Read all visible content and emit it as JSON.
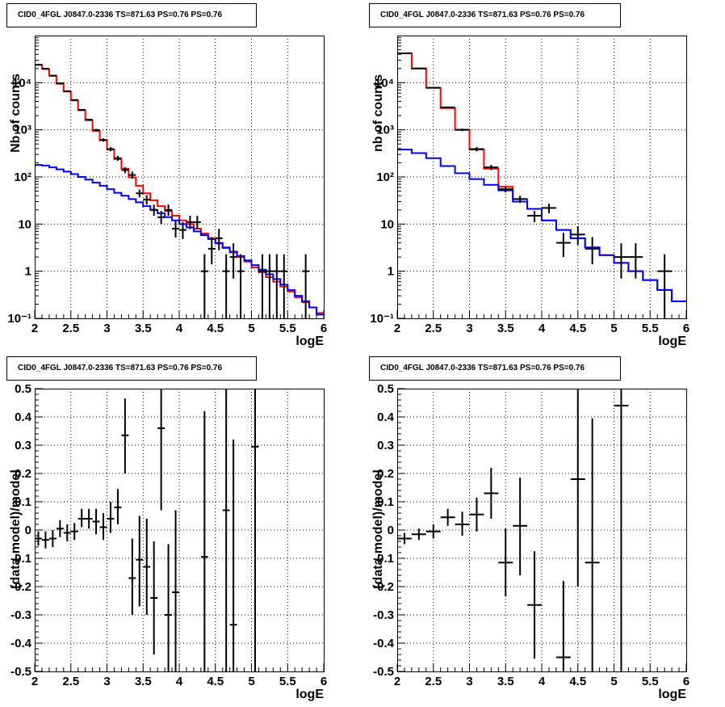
{
  "chart_data": [
    {
      "type": "line",
      "title": "CID0_4FGL J0847.0-2336 TS=871.63 PS=0.76 PS=0.76",
      "xlabel": "logE",
      "ylabel": "Nb of counts",
      "xlim": [
        2,
        6
      ],
      "ylim": [
        0.1,
        100000
      ],
      "yscale": "log",
      "grid": true,
      "x_ticks": [
        "2",
        "2.5",
        "3",
        "3.5",
        "4",
        "4.5",
        "5",
        "5.5",
        "6"
      ],
      "y_ticks": [
        "10⁻¹",
        "1",
        "10",
        "10²",
        "10³",
        "10⁴"
      ],
      "bin_edges": [
        2.0,
        2.1,
        2.2,
        2.3,
        2.4,
        2.5,
        2.6,
        2.7,
        2.8,
        2.9,
        3.0,
        3.1,
        3.2,
        3.3,
        3.4,
        3.5,
        3.6,
        3.7,
        3.8,
        3.9,
        4.0,
        4.1,
        4.2,
        4.3,
        4.4,
        4.5,
        4.6,
        4.7,
        4.8,
        4.9,
        5.0,
        5.1,
        5.2,
        5.3,
        5.4,
        5.5,
        5.6,
        5.7,
        5.8,
        5.9,
        6.0
      ],
      "series": [
        {
          "color": "#ff0000",
          "values": [
            24000,
            19500,
            14000,
            9500,
            6500,
            4200,
            2600,
            1600,
            950,
            600,
            380,
            240,
            150,
            98,
            65,
            45,
            32,
            24,
            19,
            15,
            12,
            10,
            8,
            6.3,
            5,
            4,
            3.1,
            2.5,
            2,
            1.6,
            1.2,
            0.95,
            0.75,
            0.6,
            0.47,
            0.37,
            0.28,
            0.22,
            0.17,
            0.13
          ]
        },
        {
          "color": "#0000ff",
          "values": [
            180,
            175,
            160,
            145,
            130,
            115,
            100,
            88,
            76,
            65,
            55,
            46,
            40,
            34,
            29,
            24,
            20,
            17,
            14,
            12,
            10,
            8.5,
            7,
            5.8,
            4.8,
            3.9,
            3.2,
            2.6,
            2.1,
            1.7,
            1.35,
            1.08,
            0.86,
            0.68,
            0.52,
            0.4,
            0.3,
            0.23,
            0.17,
            0.12
          ]
        }
      ],
      "points": [
        {
          "x": 2.05,
          "y": 24000,
          "ylo": 23700,
          "yhi": 24300
        },
        {
          "x": 2.15,
          "y": 19800,
          "ylo": 19550,
          "yhi": 20050
        },
        {
          "x": 2.25,
          "y": 14100,
          "ylo": 13880,
          "yhi": 14320
        },
        {
          "x": 2.35,
          "y": 9700,
          "ylo": 9500,
          "yhi": 9900
        },
        {
          "x": 2.45,
          "y": 6600,
          "ylo": 6440,
          "yhi": 6760
        },
        {
          "x": 2.55,
          "y": 4280,
          "ylo": 4150,
          "yhi": 4410
        },
        {
          "x": 2.65,
          "y": 2650,
          "ylo": 2550,
          "yhi": 2750
        },
        {
          "x": 2.75,
          "y": 1640,
          "ylo": 1560,
          "yhi": 1720
        },
        {
          "x": 2.85,
          "y": 990,
          "ylo": 930,
          "yhi": 1050
        },
        {
          "x": 2.95,
          "y": 610,
          "ylo": 560,
          "yhi": 660
        },
        {
          "x": 3.05,
          "y": 390,
          "ylo": 350,
          "yhi": 430
        },
        {
          "x": 3.15,
          "y": 250,
          "ylo": 220,
          "yhi": 280
        },
        {
          "x": 3.25,
          "y": 140,
          "ylo": 120,
          "yhi": 160
        },
        {
          "x": 3.35,
          "y": 110,
          "ylo": 92,
          "yhi": 130
        },
        {
          "x": 3.45,
          "y": 45,
          "ylo": 37,
          "yhi": 54
        },
        {
          "x": 3.55,
          "y": 33,
          "ylo": 26,
          "yhi": 41
        },
        {
          "x": 3.65,
          "y": 20,
          "ylo": 15,
          "yhi": 26
        },
        {
          "x": 3.75,
          "y": 14,
          "ylo": 10,
          "yhi": 19
        },
        {
          "x": 3.85,
          "y": 20,
          "ylo": 15,
          "yhi": 26
        },
        {
          "x": 3.95,
          "y": 8,
          "ylo": 5.2,
          "yhi": 11.5
        },
        {
          "x": 4.05,
          "y": 7.5,
          "ylo": 4.8,
          "yhi": 11
        },
        {
          "x": 4.15,
          "y": 11,
          "ylo": 7.8,
          "yhi": 15
        },
        {
          "x": 4.25,
          "y": 11,
          "ylo": 7.8,
          "yhi": 15
        },
        {
          "x": 4.35,
          "y": 1,
          "ylo": 0.1,
          "yhi": 2.3
        },
        {
          "x": 4.45,
          "y": 3,
          "ylo": 1.4,
          "yhi": 5.3
        },
        {
          "x": 4.55,
          "y": 5,
          "ylo": 2.8,
          "yhi": 7.9
        },
        {
          "x": 4.65,
          "y": 1,
          "ylo": 0.1,
          "yhi": 2.3
        },
        {
          "x": 4.75,
          "y": 2,
          "ylo": 0.7,
          "yhi": 3.9
        },
        {
          "x": 4.85,
          "y": 1,
          "ylo": 0.1,
          "yhi": 2.3
        },
        {
          "x": 5.15,
          "y": 1,
          "ylo": 0.1,
          "yhi": 2.3
        },
        {
          "x": 5.25,
          "y": 1,
          "ylo": 0.1,
          "yhi": 2.3
        },
        {
          "x": 5.35,
          "y": 1,
          "ylo": 0.1,
          "yhi": 2.3
        },
        {
          "x": 5.45,
          "y": 1,
          "ylo": 0.1,
          "yhi": 2.3
        },
        {
          "x": 5.75,
          "y": 1,
          "ylo": 0.1,
          "yhi": 2.3
        }
      ]
    },
    {
      "type": "line",
      "title": "CID0_4FGL J0847.0-2336 TS=871.63 PS=0.76 PS=0.76",
      "xlabel": "logE",
      "ylabel": "nb of counts",
      "xlim": [
        2,
        6
      ],
      "ylim": [
        0.1,
        100000
      ],
      "yscale": "log",
      "grid": true,
      "x_ticks": [
        "2",
        "2.5",
        "3",
        "3.5",
        "4",
        "4.5",
        "5",
        "5.5",
        "6"
      ],
      "y_ticks": [
        "10⁻¹",
        "1",
        "10",
        "10²",
        "10³",
        "10⁴"
      ],
      "bin_edges": [
        2.0,
        2.2,
        2.4,
        2.6,
        2.8,
        3.0,
        3.2,
        3.4,
        3.6,
        3.8,
        4.0,
        4.2,
        4.4,
        4.6,
        4.8,
        5.0,
        5.2,
        5.4,
        5.6,
        5.8,
        6.0
      ],
      "series": [
        {
          "color": "#ff0000",
          "values": [
            42000,
            20000,
            7800,
            2900,
            1000,
            380,
            150,
            62,
            34,
            21,
            12,
            7.5,
            5,
            3.2,
            2.2,
            1.5,
            1,
            0.65,
            0.4,
            0.23
          ]
        },
        {
          "color": "#0000ff",
          "values": [
            380,
            320,
            250,
            170,
            120,
            90,
            68,
            52,
            30,
            21,
            12,
            7.5,
            5,
            3.2,
            2.2,
            1.5,
            1,
            0.65,
            0.4,
            0.23
          ]
        }
      ],
      "points": [
        {
          "x": 2.1,
          "y": 42000,
          "ylo": 41600,
          "yhi": 42400
        },
        {
          "x": 2.3,
          "y": 20000,
          "ylo": 19700,
          "yhi": 20300
        },
        {
          "x": 2.5,
          "y": 7800,
          "ylo": 7600,
          "yhi": 8000
        },
        {
          "x": 2.7,
          "y": 3000,
          "ylo": 2890,
          "yhi": 3110
        },
        {
          "x": 2.9,
          "y": 1000,
          "ylo": 940,
          "yhi": 1060
        },
        {
          "x": 3.1,
          "y": 390,
          "ylo": 350,
          "yhi": 430
        },
        {
          "x": 3.3,
          "y": 160,
          "ylo": 140,
          "yhi": 180
        },
        {
          "x": 3.5,
          "y": 55,
          "ylo": 47,
          "yhi": 63
        },
        {
          "x": 3.7,
          "y": 34,
          "ylo": 28,
          "yhi": 40
        },
        {
          "x": 3.9,
          "y": 15,
          "ylo": 11,
          "yhi": 19
        },
        {
          "x": 4.1,
          "y": 22,
          "ylo": 17,
          "yhi": 27
        },
        {
          "x": 4.3,
          "y": 4,
          "ylo": 2,
          "yhi": 6.5
        },
        {
          "x": 4.5,
          "y": 6,
          "ylo": 3.6,
          "yhi": 9
        },
        {
          "x": 4.7,
          "y": 3,
          "ylo": 1.4,
          "yhi": 5.3
        },
        {
          "x": 5.1,
          "y": 2,
          "ylo": 0.7,
          "yhi": 3.9
        },
        {
          "x": 5.3,
          "y": 2,
          "ylo": 0.7,
          "yhi": 3.9
        },
        {
          "x": 5.7,
          "y": 1,
          "ylo": 0.1,
          "yhi": 2.3
        }
      ]
    },
    {
      "type": "scatter",
      "title": "CID0_4FGL J0847.0-2336 TS=871.63 PS=0.76 PS=0.76",
      "xlabel": "logE",
      "ylabel": "(data-model)/model",
      "xlim": [
        2,
        6
      ],
      "ylim": [
        -0.5,
        0.5
      ],
      "grid": true,
      "x_ticks": [
        "2",
        "2.5",
        "3",
        "3.5",
        "4",
        "4.5",
        "5",
        "5.5",
        "6"
      ],
      "y_ticks": [
        "-0.5",
        "-0.4",
        "-0.3",
        "-0.2",
        "-0.1",
        "0",
        "0.1",
        "0.2",
        "0.3",
        "0.4",
        "0.5"
      ],
      "points": [
        {
          "x": 2.05,
          "y": -0.03,
          "xerr": 0.05,
          "ylo": -0.055,
          "yhi": -0.005
        },
        {
          "x": 2.15,
          "y": -0.035,
          "xerr": 0.05,
          "ylo": -0.065,
          "yhi": -0.005
        },
        {
          "x": 2.25,
          "y": -0.03,
          "xerr": 0.05,
          "ylo": -0.06,
          "yhi": 0.0
        },
        {
          "x": 2.35,
          "y": 0.005,
          "xerr": 0.05,
          "ylo": -0.025,
          "yhi": 0.035
        },
        {
          "x": 2.45,
          "y": -0.01,
          "xerr": 0.05,
          "ylo": -0.04,
          "yhi": 0.02
        },
        {
          "x": 2.55,
          "y": -0.005,
          "xerr": 0.05,
          "ylo": -0.035,
          "yhi": 0.025
        },
        {
          "x": 2.65,
          "y": 0.04,
          "xerr": 0.05,
          "ylo": 0.01,
          "yhi": 0.075
        },
        {
          "x": 2.75,
          "y": 0.04,
          "xerr": 0.05,
          "ylo": 0.005,
          "yhi": 0.075
        },
        {
          "x": 2.85,
          "y": 0.03,
          "xerr": 0.05,
          "ylo": -0.015,
          "yhi": 0.075
        },
        {
          "x": 2.95,
          "y": 0.01,
          "xerr": 0.05,
          "ylo": -0.035,
          "yhi": 0.06
        },
        {
          "x": 3.05,
          "y": 0.04,
          "xerr": 0.05,
          "ylo": -0.01,
          "yhi": 0.1
        },
        {
          "x": 3.15,
          "y": 0.08,
          "xerr": 0.05,
          "ylo": 0.02,
          "yhi": 0.145
        },
        {
          "x": 3.25,
          "y": 0.335,
          "xerr": 0.05,
          "ylo": 0.2,
          "yhi": 0.465
        },
        {
          "x": 3.35,
          "y": -0.17,
          "xerr": 0.05,
          "ylo": -0.3,
          "yhi": -0.03
        },
        {
          "x": 3.45,
          "y": -0.105,
          "xerr": 0.05,
          "ylo": -0.27,
          "yhi": 0.05
        },
        {
          "x": 3.55,
          "y": -0.13,
          "xerr": 0.05,
          "ylo": -0.3,
          "yhi": 0.04
        },
        {
          "x": 3.65,
          "y": -0.24,
          "xerr": 0.05,
          "ylo": -0.44,
          "yhi": -0.04
        },
        {
          "x": 3.75,
          "y": 0.36,
          "xerr": 0.05,
          "ylo": 0.07,
          "yhi": 0.5
        },
        {
          "x": 3.85,
          "y": -0.3,
          "xerr": 0.05,
          "ylo": -0.5,
          "yhi": -0.05
        },
        {
          "x": 3.95,
          "y": -0.22,
          "xerr": 0.05,
          "ylo": -0.5,
          "yhi": 0.07
        },
        {
          "x": 4.35,
          "y": -0.095,
          "xerr": 0.05,
          "ylo": -0.5,
          "yhi": 0.42
        },
        {
          "x": 4.65,
          "y": 0.07,
          "xerr": 0.05,
          "ylo": -0.5,
          "yhi": 0.5
        },
        {
          "x": 4.75,
          "y": -0.335,
          "xerr": 0.05,
          "ylo": -0.5,
          "yhi": 0.32
        },
        {
          "x": 5.05,
          "y": 0.295,
          "xerr": 0.05,
          "ylo": -0.5,
          "yhi": 0.5
        }
      ]
    },
    {
      "type": "scatter",
      "title": "CID0_4FGL J0847.0-2336 TS=871.63 PS=0.76 PS=0.76",
      "xlabel": "logE",
      "ylabel": "(data-model)/model",
      "xlim": [
        2,
        6
      ],
      "ylim": [
        -0.5,
        0.5
      ],
      "grid": true,
      "x_ticks": [
        "2",
        "2.5",
        "3",
        "3.5",
        "4",
        "4.5",
        "5",
        "5.5",
        "6"
      ],
      "y_ticks": [
        "-0.5",
        "-0.4",
        "-0.3",
        "-0.2",
        "-0.1",
        "0",
        "0.1",
        "0.2",
        "0.3",
        "0.4",
        "0.5"
      ],
      "points": [
        {
          "x": 2.1,
          "y": -0.03,
          "xerr": 0.1,
          "ylo": -0.05,
          "yhi": -0.01
        },
        {
          "x": 2.3,
          "y": -0.015,
          "xerr": 0.1,
          "ylo": -0.035,
          "yhi": 0.005
        },
        {
          "x": 2.5,
          "y": -0.005,
          "xerr": 0.1,
          "ylo": -0.03,
          "yhi": 0.02
        },
        {
          "x": 2.7,
          "y": 0.045,
          "xerr": 0.1,
          "ylo": 0.015,
          "yhi": 0.075
        },
        {
          "x": 2.9,
          "y": 0.02,
          "xerr": 0.1,
          "ylo": -0.02,
          "yhi": 0.065
        },
        {
          "x": 3.1,
          "y": 0.055,
          "xerr": 0.1,
          "ylo": -0.005,
          "yhi": 0.115
        },
        {
          "x": 3.3,
          "y": 0.13,
          "xerr": 0.1,
          "ylo": 0.04,
          "yhi": 0.22
        },
        {
          "x": 3.5,
          "y": -0.115,
          "xerr": 0.1,
          "ylo": -0.235,
          "yhi": 0.005
        },
        {
          "x": 3.7,
          "y": 0.015,
          "xerr": 0.1,
          "ylo": -0.16,
          "yhi": 0.185
        },
        {
          "x": 3.9,
          "y": -0.265,
          "xerr": 0.1,
          "ylo": -0.455,
          "yhi": -0.075
        },
        {
          "x": 4.3,
          "y": -0.45,
          "xerr": 0.1,
          "ylo": -0.5,
          "yhi": -0.18
        },
        {
          "x": 4.5,
          "y": 0.18,
          "xerr": 0.1,
          "ylo": -0.2,
          "yhi": 0.5
        },
        {
          "x": 4.7,
          "y": -0.115,
          "xerr": 0.1,
          "ylo": -0.5,
          "yhi": 0.395
        },
        {
          "x": 5.1,
          "y": 0.44,
          "xerr": 0.1,
          "ylo": -0.5,
          "yhi": 0.5
        }
      ]
    }
  ]
}
